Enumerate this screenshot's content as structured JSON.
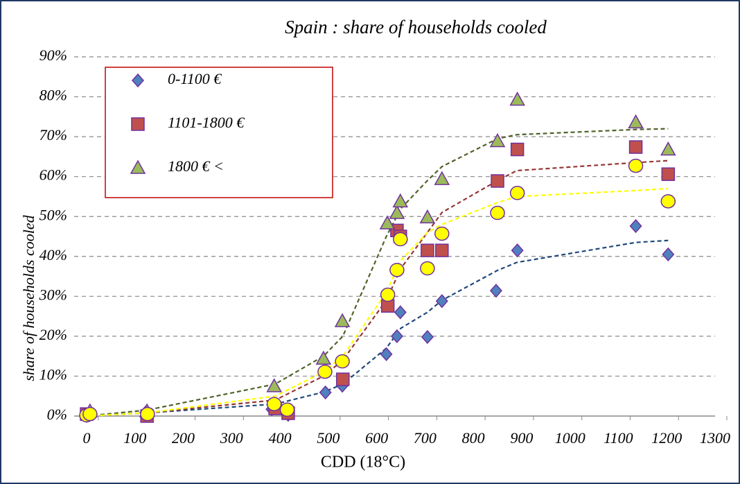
{
  "chart_data": {
    "type": "scatter",
    "title": "Spain : share of households cooled",
    "x_label": "CDD (18°C)",
    "y_label": "share of households cooled",
    "xlim": [
      0,
      1300
    ],
    "ylim": [
      0,
      90
    ],
    "xticks": [
      0,
      100,
      200,
      300,
      400,
      500,
      600,
      700,
      800,
      900,
      1000,
      1100,
      1200,
      1300
    ],
    "yticks": [
      {
        "value": 0,
        "label": "0%"
      },
      {
        "value": 10,
        "label": "10%"
      },
      {
        "value": 20,
        "label": "20%"
      },
      {
        "value": 30,
        "label": "30%"
      },
      {
        "value": 40,
        "label": "40%"
      },
      {
        "value": 50,
        "label": "50%"
      },
      {
        "value": 60,
        "label": "60%"
      },
      {
        "value": 70,
        "label": "70%"
      },
      {
        "value": 80,
        "label": "80%"
      },
      {
        "value": 90,
        "label": "90%"
      }
    ],
    "grid": true,
    "legend": "upper left",
    "series": [
      {
        "name": "0-1100 €",
        "marker": "diamond",
        "color": "#4f81bd",
        "x": [
          0,
          122,
          383,
          417,
          494,
          529,
          620,
          642,
          649,
          705,
          735,
          847,
          891,
          1136,
          1203
        ],
        "values": [
          0,
          0.9,
          1.7,
          0.3,
          5.9,
          7.6,
          15.5,
          20,
          26,
          19.8,
          28.8,
          31.4,
          41.5,
          47.6,
          40.5
        ],
        "trend_color": "#1f497d",
        "trend_x": [
          0,
          125,
          390,
          490,
          530,
          620,
          650,
          705,
          735,
          850,
          890,
          1136,
          1203
        ],
        "trend_values": [
          0,
          0.8,
          3,
          6,
          8,
          17,
          22,
          26,
          29,
          36.5,
          38.5,
          43.5,
          44
        ]
      },
      {
        "name": "1101-1800 €",
        "marker": "square",
        "color": "#c0504d",
        "x": [
          0,
          125,
          390,
          417,
          530,
          623,
          642,
          649,
          705,
          735,
          850,
          891,
          1136,
          1203
        ],
        "values": [
          0.5,
          0,
          1.9,
          0.7,
          9.2,
          27.6,
          46.5,
          45,
          41.5,
          41.5,
          58.9,
          66.8,
          67.4,
          60.6
        ],
        "trend_color": "#953735",
        "trend_x": [
          0,
          125,
          390,
          490,
          530,
          620,
          650,
          705,
          735,
          850,
          890,
          1136,
          1203
        ],
        "trend_values": [
          0,
          0.8,
          4,
          10,
          14,
          29,
          37,
          46,
          51,
          59,
          61.5,
          63.5,
          64
        ]
      },
      {
        "name": "1800 € <",
        "marker": "triangle",
        "color": "#9bbb59",
        "x": [
          7,
          125,
          388,
          490,
          529,
          622,
          642,
          649,
          705,
          735,
          850,
          891,
          1136,
          1203
        ],
        "values": [
          1.2,
          1.2,
          7.5,
          14.4,
          23.8,
          48.3,
          50.9,
          53.8,
          49.8,
          59.4,
          68.9,
          79.3,
          73.6,
          66.8
        ],
        "trend_color": "#4f6228",
        "trend_x": [
          0,
          125,
          390,
          490,
          530,
          620,
          650,
          705,
          735,
          850,
          890,
          1136,
          1203
        ],
        "trend_values": [
          0,
          1.5,
          8,
          15,
          20,
          45,
          52,
          59,
          62.5,
          69.5,
          70.5,
          71.8,
          72
        ]
      },
      {
        "marker": "circle",
        "color": "#ffff00",
        "x": [
          0,
          7,
          126,
          388,
          415,
          493,
          529,
          623,
          642,
          649,
          705,
          735,
          850,
          891,
          1136,
          1203
        ],
        "values": [
          0.2,
          0.5,
          0.5,
          3,
          1.6,
          11.1,
          13.7,
          30.4,
          36.6,
          44.3,
          37,
          45.7,
          50.9,
          55.9,
          62.7,
          53.8
        ],
        "trend_color": "#ffff00",
        "trend_x": [
          0,
          125,
          390,
          490,
          530,
          620,
          650,
          705,
          735,
          850,
          890,
          1136,
          1203
        ],
        "trend_values": [
          0,
          0.8,
          5,
          11,
          15,
          31,
          39,
          46,
          48,
          53.5,
          55,
          56.5,
          57
        ]
      }
    ]
  }
}
